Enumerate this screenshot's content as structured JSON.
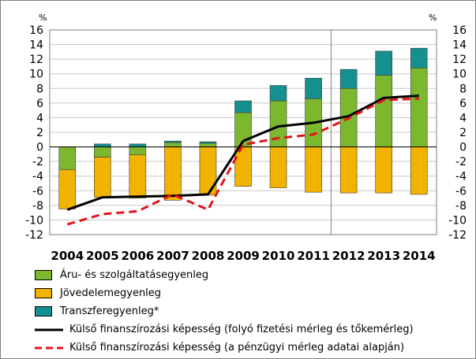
{
  "colors": {
    "goods_services": "#7cb82f",
    "income": "#f2b300",
    "transfer": "#16908f",
    "line_solid": "#000000",
    "line_dashed": "#e3141b",
    "grid": "#c8c8c8",
    "divider": "#7f7f7f"
  },
  "chart_data": {
    "type": "bar",
    "subtype": "stacked bar with lines",
    "categories": [
      "2004",
      "2005",
      "2006",
      "2007",
      "2008",
      "2009",
      "2010",
      "2011",
      "2012",
      "2013",
      "2014"
    ],
    "y_unit_left": "%",
    "y_unit_right": "%",
    "ylim": [
      -12,
      16
    ],
    "yticks": [
      -12,
      -10,
      -8,
      -6,
      -4,
      -2,
      0,
      2,
      4,
      6,
      8,
      10,
      12,
      14,
      16
    ],
    "grid": true,
    "divider_after_category": "2011",
    "series": [
      {
        "name": "Áru- és szolgáltatásegyenleg",
        "kind": "bar",
        "color_key": "goods_services",
        "values": [
          -3.1,
          -1.4,
          -1.1,
          0.6,
          0.5,
          4.7,
          6.3,
          6.6,
          8.0,
          9.8,
          10.8
        ]
      },
      {
        "name": "Jövedelemegyenleg",
        "kind": "bar",
        "color_key": "income",
        "values": [
          -5.4,
          -5.5,
          -5.9,
          -7.3,
          -6.6,
          -5.4,
          -5.6,
          -6.2,
          -6.3,
          -6.3,
          -6.5
        ]
      },
      {
        "name": "Transzferegyenleg*",
        "kind": "bar",
        "color_key": "transfer",
        "values": [
          0.0,
          0.4,
          0.4,
          0.2,
          0.2,
          1.6,
          2.1,
          2.8,
          2.6,
          3.3,
          2.7
        ]
      },
      {
        "name": "Külső finanszírozási képesség (folyó fizetési mérleg és tőkemérleg)",
        "kind": "line",
        "style": "solid",
        "color_key": "line_solid",
        "values": [
          -8.6,
          -6.9,
          -6.8,
          -6.7,
          -6.5,
          0.8,
          2.8,
          3.3,
          4.2,
          6.7,
          7.0
        ]
      },
      {
        "name": "Külső finanszírozási képesség (a pénzügyi mérleg adatai alapján)",
        "kind": "line",
        "style": "dashed",
        "color_key": "line_dashed",
        "values": [
          -10.6,
          -9.2,
          -8.8,
          -6.5,
          -8.6,
          0.3,
          1.2,
          1.7,
          3.9,
          6.4,
          6.6
        ]
      }
    ],
    "legend_placement": "bottom"
  }
}
